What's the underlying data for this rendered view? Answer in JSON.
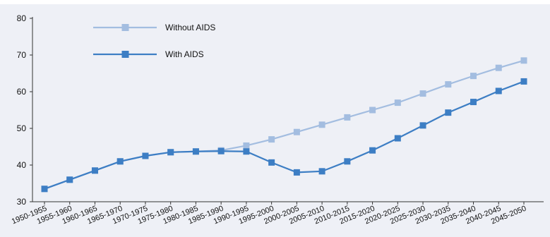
{
  "chart_data": {
    "type": "line",
    "title": "",
    "xlabel": "",
    "ylabel": "",
    "ylim": [
      30,
      80
    ],
    "yticks": [
      30,
      40,
      50,
      60,
      70,
      80
    ],
    "grid": false,
    "legend_position": "top-left",
    "categories": [
      "1950-1955",
      "1955-1960",
      "1960-1965",
      "1965-1970",
      "1970-1975",
      "1975-1980",
      "1980-1985",
      "1985-1990",
      "1990-1995",
      "1995-2000",
      "2000-2005",
      "2005-2010",
      "2010-2015",
      "2015-2020",
      "2020-2025",
      "2025-2030",
      "2030-2035",
      "2035-2040",
      "2040-2045",
      "2045-2050"
    ],
    "series": [
      {
        "name": "Without AIDS",
        "color": "#a3bde0",
        "values": [
          33.5,
          36.0,
          38.5,
          41.0,
          42.5,
          43.5,
          43.7,
          44.0,
          45.3,
          47.0,
          49.0,
          51.0,
          53.0,
          55.0,
          57.0,
          59.5,
          62.0,
          64.3,
          66.5,
          68.5
        ]
      },
      {
        "name": "With AIDS",
        "color": "#3d7ec4",
        "values": [
          33.5,
          36.0,
          38.5,
          41.0,
          42.5,
          43.5,
          43.7,
          43.8,
          43.7,
          40.7,
          38.0,
          38.3,
          41.0,
          44.0,
          47.3,
          50.8,
          54.3,
          57.2,
          60.2,
          62.8
        ]
      }
    ]
  }
}
